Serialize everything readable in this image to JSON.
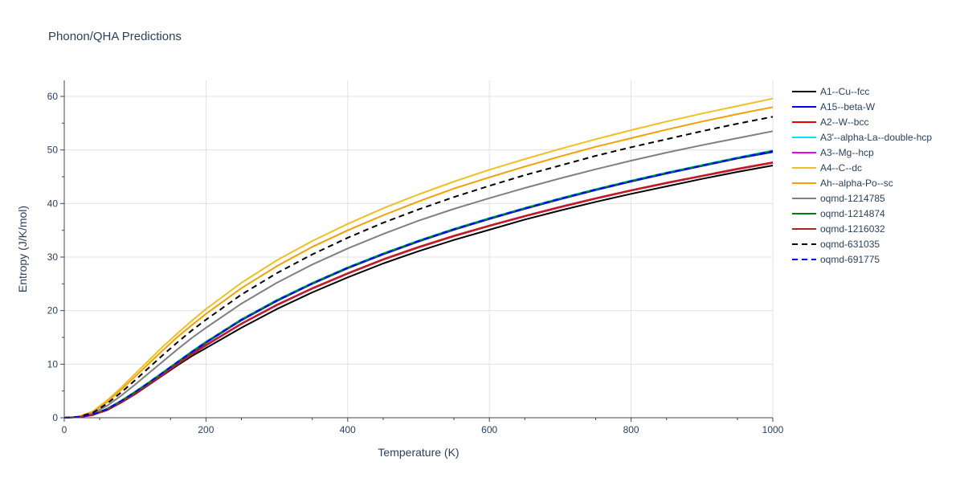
{
  "chart_data": {
    "type": "line",
    "title": "Phonon/QHA Predictions",
    "xlabel": "Temperature (K)",
    "ylabel": "Entropy (J/K/mol)",
    "xlim": [
      0,
      1000
    ],
    "ylim": [
      0,
      63
    ],
    "x_ticks": [
      0,
      200,
      400,
      600,
      800,
      1000
    ],
    "y_ticks": [
      0,
      10,
      20,
      30,
      40,
      50,
      60
    ],
    "grid": true,
    "legend_position": "right",
    "x": [
      0,
      20,
      40,
      60,
      80,
      100,
      120,
      140,
      160,
      180,
      200,
      250,
      300,
      350,
      400,
      450,
      500,
      550,
      600,
      650,
      700,
      750,
      800,
      850,
      900,
      950,
      1000
    ],
    "series": [
      {
        "name": "A1--Cu--fcc",
        "color": "#000000",
        "dash": "solid",
        "values": [
          0,
          0.1,
          0.5,
          1.4,
          2.8,
          4.4,
          6.2,
          8.0,
          9.8,
          11.5,
          13.0,
          16.8,
          20.3,
          23.4,
          26.2,
          28.8,
          31.1,
          33.2,
          35.1,
          37.0,
          38.7,
          40.3,
          41.8,
          43.2,
          44.6,
          45.9,
          47.1
        ]
      },
      {
        "name": "A15--beta-W",
        "color": "#0000ee",
        "dash": "solid",
        "values": [
          0,
          0.1,
          0.6,
          1.6,
          3.0,
          4.7,
          6.5,
          8.4,
          10.3,
          12.2,
          14.0,
          18.2,
          21.8,
          25.0,
          27.9,
          30.5,
          32.9,
          35.1,
          37.1,
          39.0,
          40.8,
          42.5,
          44.1,
          45.6,
          47.0,
          48.4,
          49.6
        ]
      },
      {
        "name": "A2--W--bcc",
        "color": "#ee0000",
        "dash": "solid",
        "values": [
          0,
          0.1,
          0.5,
          1.5,
          2.9,
          4.6,
          6.4,
          8.2,
          10.1,
          11.9,
          13.6,
          17.6,
          21.1,
          24.2,
          27.0,
          29.6,
          31.9,
          34.0,
          35.9,
          37.7,
          39.4,
          41.0,
          42.5,
          43.9,
          45.2,
          46.5,
          47.7
        ]
      },
      {
        "name": "A3'--alpha-La--double-hcp",
        "color": "#00e5ee",
        "dash": "solid",
        "values": [
          0,
          0.1,
          0.6,
          1.7,
          3.2,
          4.9,
          6.7,
          8.6,
          10.5,
          12.4,
          14.2,
          18.4,
          22.0,
          25.2,
          28.1,
          30.7,
          33.1,
          35.3,
          37.3,
          39.2,
          41.0,
          42.7,
          44.3,
          45.8,
          47.2,
          48.6,
          49.9
        ]
      },
      {
        "name": "A3--Mg--hcp",
        "color": "#ee00ee",
        "dash": "solid",
        "values": [
          0,
          0.1,
          0.5,
          1.5,
          2.9,
          4.5,
          6.3,
          8.1,
          10.0,
          11.8,
          13.5,
          17.5,
          21.0,
          24.1,
          26.9,
          29.5,
          31.8,
          33.9,
          35.8,
          37.6,
          39.3,
          40.9,
          42.4,
          43.8,
          45.1,
          46.4,
          47.6
        ]
      },
      {
        "name": "A4--C--dc",
        "color": "#f0c020",
        "dash": "solid",
        "values": [
          0,
          0.2,
          1.2,
          3.2,
          5.6,
          8.2,
          10.8,
          13.4,
          15.8,
          18.1,
          20.3,
          25.2,
          29.4,
          33.0,
          36.2,
          39.1,
          41.7,
          44.1,
          46.3,
          48.3,
          50.2,
          52.0,
          53.7,
          55.3,
          56.8,
          58.2,
          59.6
        ]
      },
      {
        "name": "Ah--alpha-Po--sc",
        "color": "#f5a000",
        "dash": "solid",
        "values": [
          0,
          0.2,
          1.0,
          2.9,
          5.2,
          7.7,
          10.2,
          12.7,
          15.1,
          17.3,
          19.4,
          24.2,
          28.3,
          31.9,
          35.0,
          37.8,
          40.4,
          42.8,
          44.9,
          46.9,
          48.8,
          50.6,
          52.2,
          53.8,
          55.3,
          56.7,
          58.0
        ]
      },
      {
        "name": "oqmd-1214785",
        "color": "#808080",
        "dash": "solid",
        "values": [
          0,
          0.1,
          0.8,
          2.2,
          4.1,
          6.2,
          8.4,
          10.6,
          12.8,
          14.9,
          16.8,
          21.3,
          25.2,
          28.6,
          31.6,
          34.3,
          36.8,
          39.0,
          41.0,
          42.9,
          44.7,
          46.4,
          48.0,
          49.5,
          50.9,
          52.2,
          53.5
        ]
      },
      {
        "name": "oqmd-1214874",
        "color": "#008000",
        "dash": "solid",
        "values": [
          0,
          0.1,
          0.6,
          1.6,
          3.1,
          4.8,
          6.6,
          8.5,
          10.4,
          12.3,
          14.1,
          18.3,
          21.9,
          25.1,
          28.0,
          30.6,
          33.0,
          35.2,
          37.2,
          39.1,
          40.9,
          42.6,
          44.2,
          45.7,
          47.1,
          48.5,
          49.8
        ]
      },
      {
        "name": "oqmd-1216032",
        "color": "#b22222",
        "dash": "solid",
        "values": [
          0,
          0.1,
          0.5,
          1.5,
          2.9,
          4.5,
          6.3,
          8.1,
          10.0,
          11.8,
          13.5,
          17.5,
          21.0,
          24.1,
          26.9,
          29.5,
          31.8,
          33.9,
          35.8,
          37.6,
          39.3,
          40.9,
          42.4,
          43.8,
          45.1,
          46.4,
          47.6
        ]
      },
      {
        "name": "oqmd-631035",
        "color": "#000000",
        "dash": "dash",
        "values": [
          0,
          0.2,
          0.9,
          2.6,
          4.7,
          7.0,
          9.4,
          11.8,
          14.1,
          16.3,
          18.3,
          23.0,
          27.0,
          30.5,
          33.6,
          36.4,
          38.9,
          41.2,
          43.3,
          45.3,
          47.1,
          48.9,
          50.5,
          52.0,
          53.5,
          54.9,
          56.2
        ]
      },
      {
        "name": "oqmd-691775",
        "color": "#0000ff",
        "dash": "dash",
        "values": [
          0,
          0.1,
          0.6,
          1.6,
          3.1,
          4.8,
          6.6,
          8.5,
          10.4,
          12.3,
          14.1,
          18.3,
          21.9,
          25.1,
          28.0,
          30.6,
          33.0,
          35.2,
          37.2,
          39.1,
          40.9,
          42.6,
          44.2,
          45.7,
          47.1,
          48.5,
          49.8
        ]
      }
    ]
  }
}
